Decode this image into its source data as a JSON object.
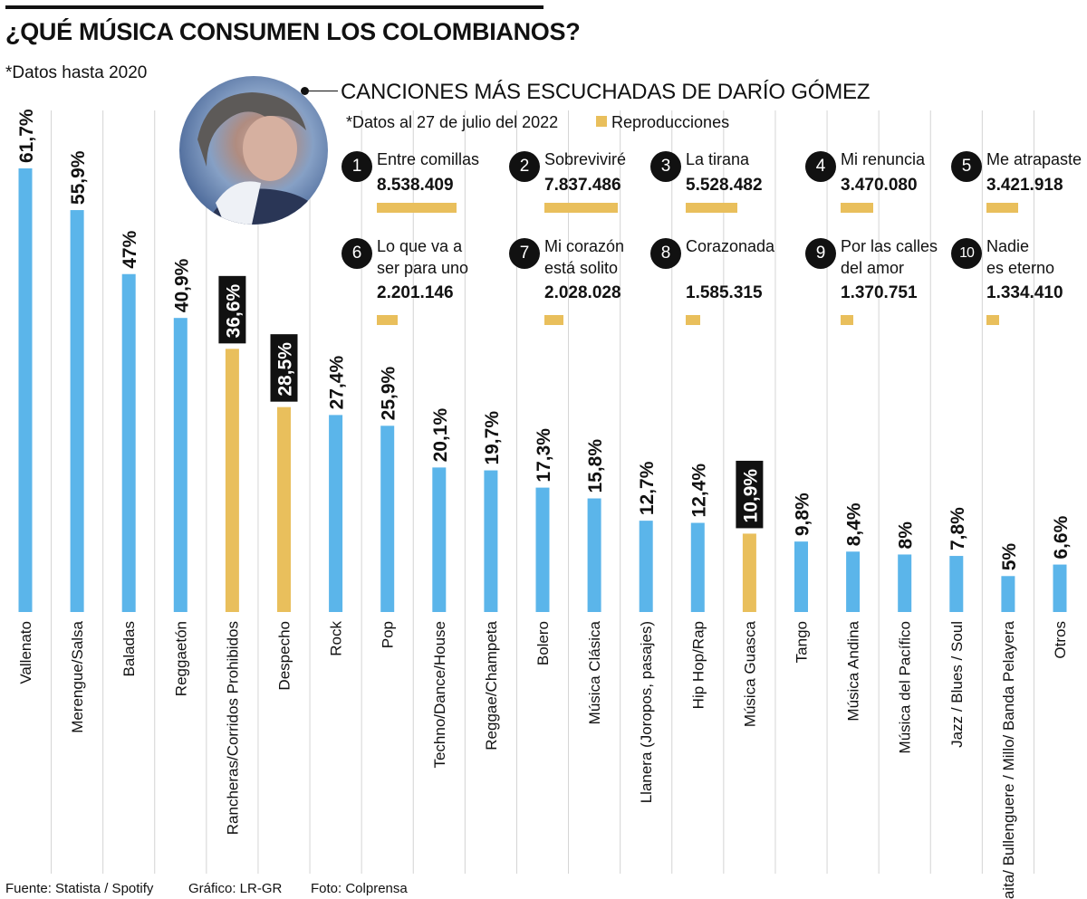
{
  "header": {
    "title": "¿QUÉ MÚSICA CONSUMEN LOS COLOMBIANOS?",
    "note": "*Datos hasta 2020"
  },
  "chart_data": {
    "type": "bar",
    "title": "¿QUÉ MÚSICA CONSUMEN LOS COLOMBIANOS?",
    "xlabel": "",
    "ylabel": "",
    "ylim": [
      0,
      61.7
    ],
    "categories": [
      "Vallenato",
      "Merengue/Salsa",
      "Baladas",
      "Reggaetón",
      "Rancheras/Corridos Prohibidos",
      "Despecho",
      "Rock",
      "Pop",
      "Techno/Dance/House",
      "Reggae/Champeta",
      "Bolero",
      "Música Clásica",
      "Llanera (Joropos, pasajes)",
      "Hip Hop/Rap",
      "Música Guasca",
      "Tango",
      "Música Andina",
      "Música del Pacífico",
      "Jazz / Blues / Soul",
      "Gaita/ Bullenguere / Millo/ Banda Pelayera",
      "Otros"
    ],
    "values": [
      61.7,
      55.9,
      47,
      40.9,
      36.6,
      28.5,
      27.4,
      25.9,
      20.1,
      19.7,
      17.3,
      15.8,
      12.7,
      12.4,
      10.9,
      9.8,
      8.4,
      8,
      7.8,
      5,
      6.6
    ],
    "labels": [
      "61,7%",
      "55,9%",
      "47%",
      "40,9%",
      "36,6%",
      "28,5%",
      "27,4%",
      "25,9%",
      "20,1%",
      "19,7%",
      "17,3%",
      "15,8%",
      "12,7%",
      "12,4%",
      "10,9%",
      "9,8%",
      "8,4%",
      "8%",
      "7,8%",
      "5%",
      "6,6%"
    ],
    "highlighted": [
      false,
      false,
      false,
      false,
      true,
      true,
      false,
      false,
      false,
      false,
      false,
      false,
      false,
      false,
      true,
      false,
      false,
      false,
      false,
      false,
      false
    ],
    "colors": {
      "bar": "#5bb5ea",
      "highlight": "#e9bf5c",
      "label_box": "#111111",
      "gridline": "#d4d4d4"
    }
  },
  "panel": {
    "title": "CANCIONES MÁS ESCUCHADAS DE DARÍO GÓMEZ",
    "note": "*Datos al 27 de julio del 2022",
    "legend": "Reproducciones",
    "songs": [
      {
        "rank": "1",
        "name": "Entre comillas",
        "plays": "8.538.409",
        "value": 8538409
      },
      {
        "rank": "2",
        "name": "Sobreviviré",
        "plays": "7.837.486",
        "value": 7837486
      },
      {
        "rank": "3",
        "name": "La tirana",
        "plays": "5.528.482",
        "value": 5528482
      },
      {
        "rank": "4",
        "name": "Mi renuncia",
        "plays": "3.470.080",
        "value": 3470080
      },
      {
        "rank": "5",
        "name": "Me atrapaste",
        "plays": "3.421.918",
        "value": 3421918
      },
      {
        "rank": "6",
        "name": "Lo que va a\nser para uno",
        "plays": "2.201.146",
        "value": 2201146
      },
      {
        "rank": "7",
        "name": "Mi corazón\nestá solito",
        "plays": "2.028.028",
        "value": 2028028
      },
      {
        "rank": "8",
        "name": "Corazonada",
        "plays": "1.585.315",
        "value": 1585315
      },
      {
        "rank": "9",
        "name": "Por las calles\ndel amor",
        "plays": "1.370.751",
        "value": 1370751
      },
      {
        "rank": "10",
        "name": "Nadie\nes eterno",
        "plays": "1.334.410",
        "value": 1334410
      }
    ]
  },
  "footer": {
    "source": "Fuente: Statista / Spotify",
    "graphic": "Gráfico: LR-GR",
    "photo": "Foto: Colprensa"
  }
}
